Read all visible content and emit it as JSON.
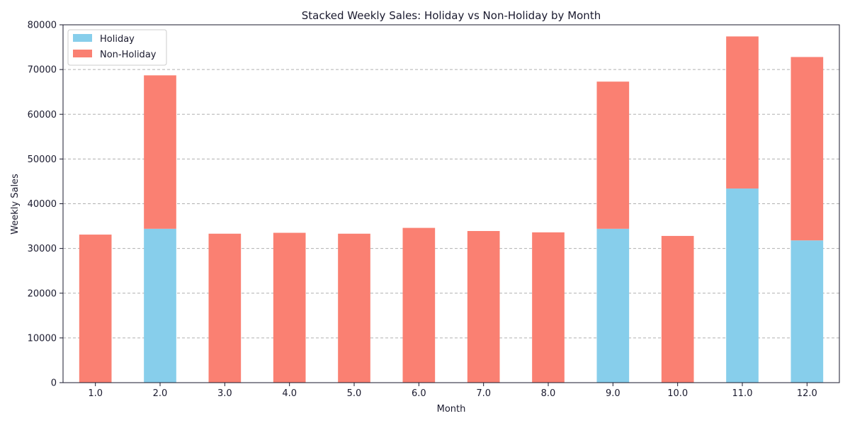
{
  "chart_data": {
    "type": "bar",
    "stacked": true,
    "title": "Stacked Weekly Sales: Holiday vs Non-Holiday by Month",
    "xlabel": "Month",
    "ylabel": "Weekly Sales",
    "categories": [
      "1.0",
      "2.0",
      "3.0",
      "4.0",
      "5.0",
      "6.0",
      "7.0",
      "8.0",
      "9.0",
      "10.0",
      "11.0",
      "12.0"
    ],
    "series": [
      {
        "name": "Holiday",
        "color": "#87CEEB",
        "values": [
          0,
          34400,
          0,
          0,
          0,
          0,
          0,
          0,
          34400,
          0,
          43400,
          31800
        ]
      },
      {
        "name": "Non-Holiday",
        "color": "#FA8072",
        "values": [
          33100,
          34300,
          33300,
          33500,
          33300,
          34600,
          33900,
          33600,
          32900,
          32800,
          34000,
          41000
        ]
      }
    ],
    "ylim": [
      0,
      80000
    ],
    "yticks": [
      "0",
      "10000",
      "20000",
      "30000",
      "40000",
      "50000",
      "60000",
      "70000",
      "80000"
    ],
    "grid": "y-dashed",
    "legend_position": "top-left"
  }
}
